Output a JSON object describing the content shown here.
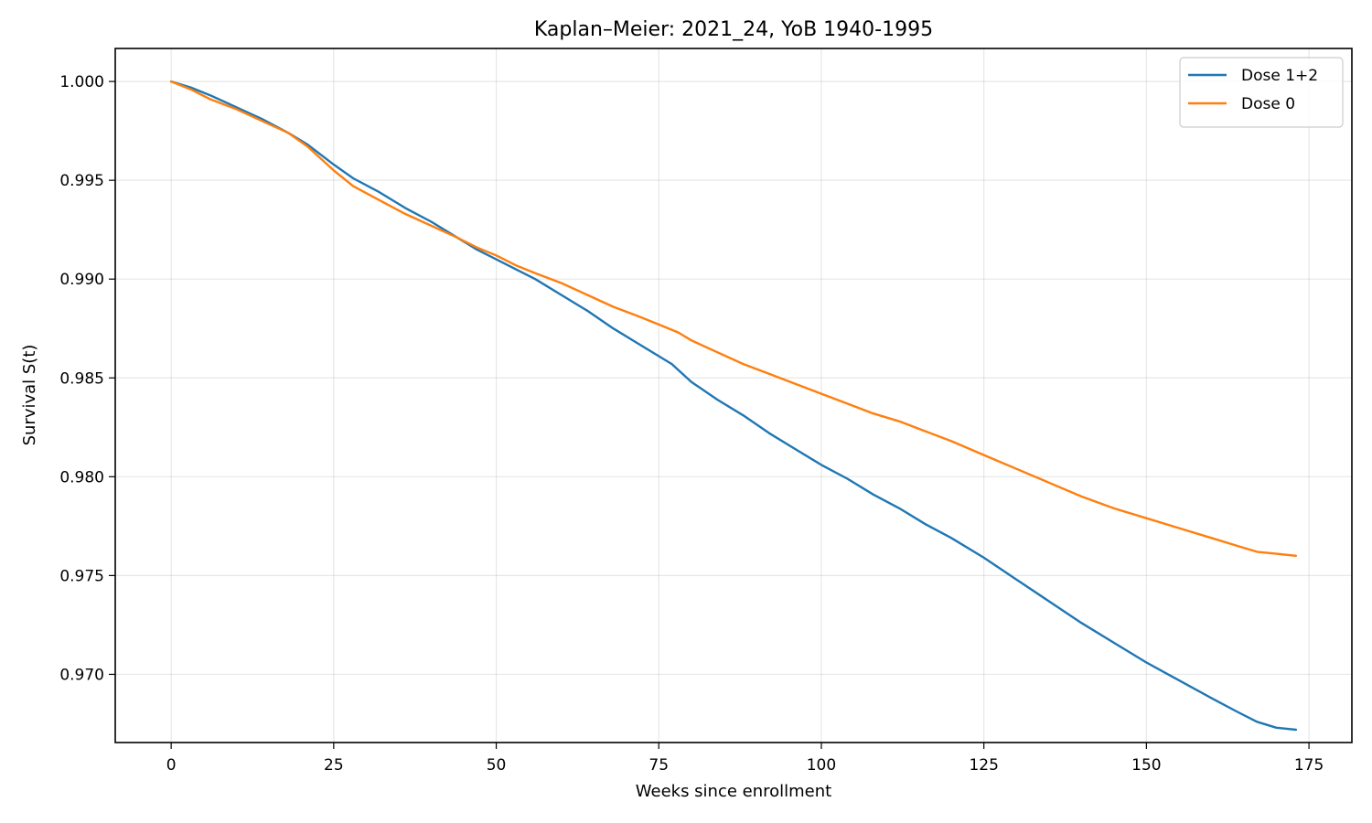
{
  "chart_data": {
    "type": "line",
    "title": "Kaplan–Meier: 2021_24, YoB 1940-1995",
    "xlabel": "Weeks since enrollment",
    "ylabel": "Survival S(t)",
    "xlim": [
      -8.6,
      181.6
    ],
    "ylim": [
      0.96655,
      1.00167
    ],
    "xticks": [
      0,
      25,
      50,
      75,
      100,
      125,
      150,
      175
    ],
    "xtick_labels": [
      "0",
      "25",
      "50",
      "75",
      "100",
      "125",
      "150",
      "175"
    ],
    "yticks": [
      0.97,
      0.975,
      0.98,
      0.985,
      0.99,
      0.995,
      1.0
    ],
    "ytick_labels": [
      "0.970",
      "0.975",
      "0.980",
      "0.985",
      "0.990",
      "0.995",
      "1.000"
    ],
    "grid": true,
    "legend_position": "top-right",
    "series": [
      {
        "name": "Dose 1+2",
        "color": "#1f77b4",
        "x": [
          0,
          3,
          6,
          10,
          14,
          18,
          21,
          25,
          28,
          32,
          36,
          40,
          44,
          47,
          50,
          53,
          56,
          60,
          64,
          68,
          72,
          75,
          77,
          80,
          84,
          88,
          92,
          96,
          100,
          104,
          108,
          112,
          116,
          120,
          125,
          130,
          135,
          140,
          145,
          150,
          155,
          160,
          164,
          167,
          170,
          173
        ],
        "y": [
          1.0,
          0.9997,
          0.9993,
          0.9987,
          0.9981,
          0.9974,
          0.9968,
          0.9958,
          0.9951,
          0.9944,
          0.9936,
          0.9929,
          0.9921,
          0.9915,
          0.991,
          0.9905,
          0.99,
          0.9892,
          0.9884,
          0.9875,
          0.9867,
          0.9861,
          0.9857,
          0.9848,
          0.9839,
          0.9831,
          0.9822,
          0.9814,
          0.9806,
          0.9799,
          0.9791,
          0.9784,
          0.9776,
          0.9769,
          0.9759,
          0.9748,
          0.9737,
          0.9726,
          0.9716,
          0.9706,
          0.9697,
          0.9688,
          0.9681,
          0.9676,
          0.9673,
          0.9672
        ]
      },
      {
        "name": "Dose 0",
        "color": "#ff7f0e",
        "x": [
          0,
          3,
          6,
          10,
          14,
          18,
          21,
          25,
          28,
          32,
          36,
          40,
          44,
          47,
          50,
          53,
          56,
          60,
          64,
          68,
          72,
          75,
          78,
          80,
          84,
          88,
          92,
          96,
          100,
          104,
          108,
          112,
          116,
          120,
          125,
          130,
          135,
          140,
          145,
          150,
          155,
          160,
          164,
          167,
          170,
          173
        ],
        "y": [
          1.0,
          0.9996,
          0.9991,
          0.9986,
          0.998,
          0.9974,
          0.9967,
          0.9955,
          0.9947,
          0.994,
          0.9933,
          0.9927,
          0.9921,
          0.9916,
          0.9912,
          0.9907,
          0.9903,
          0.9898,
          0.9892,
          0.9886,
          0.9881,
          0.9877,
          0.9873,
          0.9869,
          0.9863,
          0.9857,
          0.9852,
          0.9847,
          0.9842,
          0.9837,
          0.9832,
          0.9828,
          0.9823,
          0.9818,
          0.9811,
          0.9804,
          0.9797,
          0.979,
          0.9784,
          0.9779,
          0.9774,
          0.9769,
          0.9765,
          0.9762,
          0.9761,
          0.976
        ]
      }
    ]
  }
}
